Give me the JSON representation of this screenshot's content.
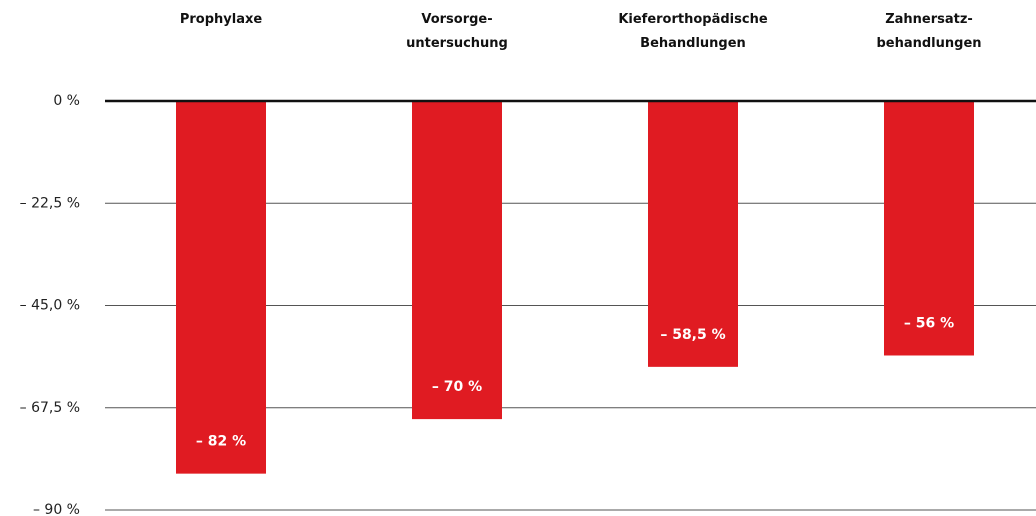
{
  "chart_data": {
    "type": "bar",
    "categories": [
      "Prophylaxe",
      "Vorsorge-\nuntersuchung",
      "Kieferorthopädische\nBehandlungen",
      "Zahnersatz-\nbehandlungen"
    ],
    "values": [
      -82,
      -70,
      -58.5,
      -56
    ],
    "value_labels": [
      "– 82 %",
      "– 70 %",
      "– 58,5 %",
      "– 56 %"
    ],
    "color": "#e01b22",
    "ylim": [
      -90,
      0
    ],
    "yticks": [
      {
        "value": 0,
        "label": "0 %"
      },
      {
        "value": -22.5,
        "label": "– 22,5 %"
      },
      {
        "value": -45,
        "label": "– 45,0 %"
      },
      {
        "value": -67.5,
        "label": "– 67,5 %"
      },
      {
        "value": -90,
        "label": "– 90 %"
      }
    ],
    "grid": true
  }
}
